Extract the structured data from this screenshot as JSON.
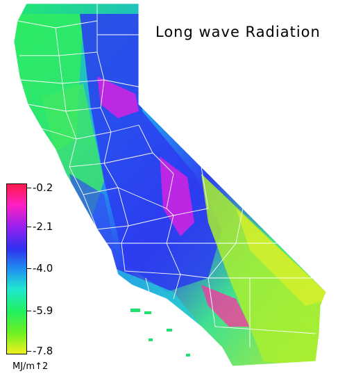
{
  "map": {
    "title": "Long wave Radiation",
    "units": "MJ/m↑2",
    "legend_values": [
      "-0.2",
      "-2.1",
      "-4.0",
      "-5.9",
      "-7.8"
    ],
    "colors": {
      "max": "#ff1a4a",
      "high": "#e020e0",
      "mid_high": "#7a20e8",
      "mid": "#2040f0",
      "mid_low": "#20c8f0",
      "low": "#20f070",
      "lower": "#60ee20",
      "min": "#e8f020",
      "boundary": "#ffffff"
    }
  }
}
